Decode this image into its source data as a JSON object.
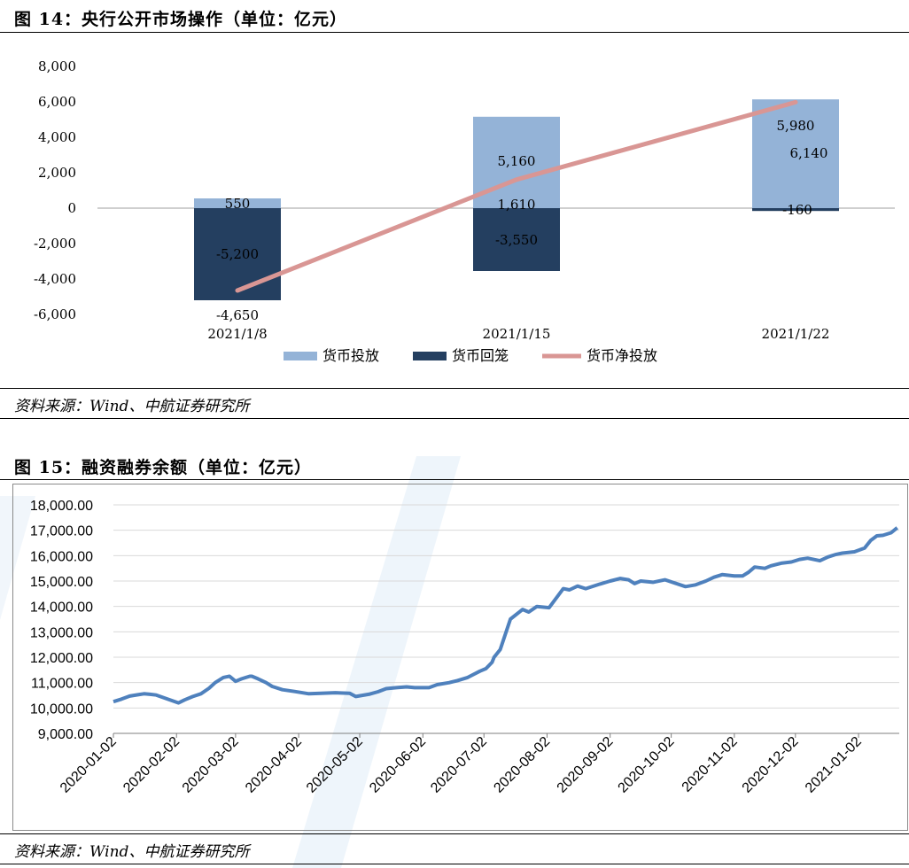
{
  "figure1": {
    "title": "图 14：央行公开市场操作（单位：亿元）",
    "source": "资料来源：Wind、中航证券研究所",
    "colors": {
      "injection": "#94b3d7",
      "withdrawal": "#243f60",
      "net": "#d99694",
      "axis": "#bfbfbf"
    },
    "chart_data": {
      "type": "bar",
      "categories": [
        "2021/1/8",
        "2021/1/15",
        "2021/1/22"
      ],
      "series": [
        {
          "name": "货币投放",
          "values": [
            550,
            5160,
            6140
          ],
          "labels": [
            "550",
            "5,160",
            "6,140"
          ]
        },
        {
          "name": "货币回笼",
          "values": [
            -5200,
            -3550,
            -160
          ],
          "labels": [
            "-5,200",
            "-3,550",
            "-160"
          ]
        },
        {
          "name": "货币净投放",
          "type": "line",
          "values": [
            -4650,
            1610,
            5980
          ],
          "labels": [
            "-4,650",
            "1,610",
            "5,980"
          ]
        }
      ],
      "ylim": [
        -6000,
        8000
      ],
      "yticks": [
        8000,
        6000,
        4000,
        2000,
        0,
        -2000,
        -4000,
        -6000
      ],
      "ytick_labels": [
        "8,000",
        "6,000",
        "4,000",
        "2,000",
        "0",
        "-2,000",
        "-4,000",
        "-6,000"
      ],
      "legend_position": "bottom",
      "stacked": true
    }
  },
  "figure2": {
    "title": "图 15：融资融券余额（单位：亿元）",
    "source": "资料来源：Wind、中航证券研究所",
    "colors": {
      "line": "#4f81bd",
      "grid": "#d9d9d9",
      "axis": "#7f7f7f"
    },
    "chart_data": {
      "type": "line",
      "series": [
        {
          "x": [
            "2020-01-02",
            "2020-01-06",
            "2020-01-10",
            "2020-01-14",
            "2020-01-17",
            "2020-01-20",
            "2020-01-23",
            "2020-02-03",
            "2020-02-06",
            "2020-02-10",
            "2020-02-14",
            "2020-02-18",
            "2020-02-21",
            "2020-02-25",
            "2020-02-28",
            "2020-03-02",
            "2020-03-05",
            "2020-03-09",
            "2020-03-10",
            "2020-03-13",
            "2020-03-17",
            "2020-03-20",
            "2020-03-25",
            "2020-03-31",
            "2020-04-07",
            "2020-04-13",
            "2020-04-20",
            "2020-04-27",
            "2020-04-30",
            "2020-05-07",
            "2020-05-11",
            "2020-05-15",
            "2020-05-20",
            "2020-05-25",
            "2020-05-29",
            "2020-06-05",
            "2020-06-09",
            "2020-06-15",
            "2020-06-19",
            "2020-06-24",
            "2020-06-30",
            "2020-07-03",
            "2020-07-06",
            "2020-07-07",
            "2020-07-10",
            "2020-07-15",
            "2020-07-21",
            "2020-07-24",
            "2020-07-28",
            "2020-08-03",
            "2020-08-10",
            "2020-08-13",
            "2020-08-17",
            "2020-08-21",
            "2020-08-28",
            "2020-09-02",
            "2020-09-07",
            "2020-09-11",
            "2020-09-14",
            "2020-09-17",
            "2020-09-23",
            "2020-09-29",
            "2020-10-09",
            "2020-10-14",
            "2020-10-19",
            "2020-10-23",
            "2020-10-27",
            "2020-11-02",
            "2020-11-06",
            "2020-11-09",
            "2020-11-12",
            "2020-11-17",
            "2020-11-20",
            "2020-11-25",
            "2020-11-30",
            "2020-12-04",
            "2020-12-08",
            "2020-12-14",
            "2020-12-18",
            "2020-12-22",
            "2020-12-25",
            "2020-12-31",
            "2021-01-05",
            "2021-01-08",
            "2021-01-11",
            "2021-01-14",
            "2021-01-18",
            "2021-01-21"
          ],
          "y": [
            10250,
            10350,
            10470,
            10520,
            10560,
            10540,
            10510,
            10200,
            10320,
            10450,
            10560,
            10780,
            11000,
            11200,
            11250,
            11050,
            11150,
            11250,
            11250,
            11150,
            11000,
            10850,
            10720,
            10650,
            10560,
            10580,
            10600,
            10580,
            10450,
            10550,
            10640,
            10760,
            10800,
            10830,
            10800,
            10800,
            10920,
            11000,
            11080,
            11200,
            11450,
            11550,
            11800,
            12000,
            12300,
            13500,
            13880,
            13780,
            14000,
            13950,
            14700,
            14650,
            14800,
            14700,
            14880,
            15000,
            15100,
            15050,
            14900,
            15000,
            14950,
            15050,
            14780,
            14850,
            15000,
            15150,
            15250,
            15200,
            15200,
            15350,
            15550,
            15500,
            15600,
            15700,
            15750,
            15850,
            15900,
            15800,
            15950,
            16050,
            16100,
            16150,
            16300,
            16600,
            16780,
            16800,
            16900,
            17100
          ]
        }
      ],
      "ylim": [
        9000,
        18000
      ],
      "yticks": [
        18000,
        17000,
        16000,
        15000,
        14000,
        13000,
        12000,
        11000,
        10000,
        9000
      ],
      "ytick_labels": [
        "18,000.00",
        "17,000.00",
        "16,000.00",
        "15,000.00",
        "14,000.00",
        "13,000.00",
        "12,000.00",
        "11,000.00",
        "10,000.00",
        "9,000.00"
      ],
      "xticks": [
        "2020-01-02",
        "2020-02-02",
        "2020-03-02",
        "2020-04-02",
        "2020-05-02",
        "2020-06-02",
        "2020-07-02",
        "2020-08-02",
        "2020-09-02",
        "2020-10-02",
        "2020-11-02",
        "2020-12-02",
        "2021-01-02"
      ],
      "xlim": [
        "2020-01-02",
        "2021-01-22"
      ],
      "grid": "horizontal"
    }
  }
}
